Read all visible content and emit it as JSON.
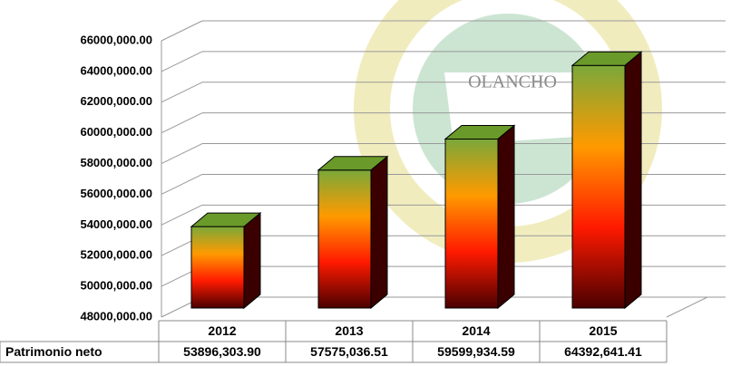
{
  "chart_data": {
    "type": "bar3d",
    "categories": [
      "2012",
      "2013",
      "2014",
      "2015"
    ],
    "series": [
      {
        "name": "Patrimonio neto",
        "gradient": [
          "#7aa83a",
          "#ff9a00",
          "#ff1a00",
          "#4a0000"
        ],
        "values": [
          53896303.9,
          57575036.51,
          59599934.59,
          64392641.41
        ],
        "value_labels": [
          "53896,303.90",
          "57575,036.51",
          "59599,934.59",
          "64392,641.41"
        ]
      }
    ],
    "ylim": [
      48000000,
      66000000
    ],
    "yticks": [
      {
        "value": 48000000,
        "label": "48000,000.00"
      },
      {
        "value": 50000000,
        "label": "50000,000.00"
      },
      {
        "value": 52000000,
        "label": "52000,000.00"
      },
      {
        "value": 54000000,
        "label": "54000,000.00"
      },
      {
        "value": 56000000,
        "label": "56000,000.00"
      },
      {
        "value": 58000000,
        "label": "58000,000.00"
      },
      {
        "value": 60000000,
        "label": "60000,000.00"
      },
      {
        "value": 62000000,
        "label": "62000,000.00"
      },
      {
        "value": 64000000,
        "label": "64000,000.00"
      },
      {
        "value": 66000000,
        "label": "66000,000.00"
      }
    ],
    "grid": true,
    "watermark": "OLANCHO"
  }
}
